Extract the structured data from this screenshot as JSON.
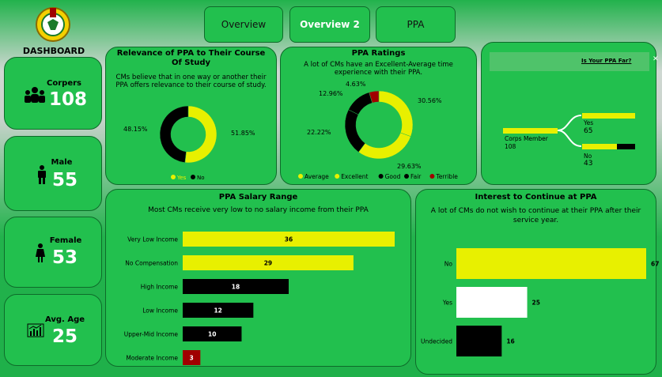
{
  "nav": {
    "overview": "Overview",
    "overview2": "Overview 2",
    "ppa": "PPA"
  },
  "dashboard_title": "DASHBOARD",
  "kpis": {
    "corpers": {
      "label": "Corpers",
      "value": "108"
    },
    "male": {
      "label": "Male",
      "value": "55"
    },
    "female": {
      "label": "Female",
      "value": "53"
    },
    "avg_age": {
      "label": "Avg. Age",
      "value": "25"
    }
  },
  "relevance": {
    "title": "Relevance of PPA to Their Course Of Study",
    "subtitle": "CMs believe that in one way or another their PPA offers relevance to their course of study.",
    "legend_yes": "Yes",
    "legend_no": "No",
    "pct_no": "48.15%",
    "pct_yes": "51.85%"
  },
  "ratings": {
    "title": "PPA Ratings",
    "subtitle": "A lot of CMs have an Excellent-Average time experience with their PPA.",
    "labels": {
      "average": "30.56%",
      "excellent": "29.63%",
      "good": "22.22%",
      "fair": "12.96%",
      "terrible": "4.63%"
    },
    "legend": [
      "Average",
      "Excellent",
      "Good",
      "Fair",
      "Terrible"
    ]
  },
  "fair_tree": {
    "header": "Is Your PPA Far?",
    "root_label": "Corps Member",
    "root_value": "108",
    "yes_label": "Yes",
    "yes_value": "65",
    "no_label": "No",
    "no_value": "43"
  },
  "salary": {
    "title": "PPA Salary Range",
    "subtitle": "Most CMs receive very low to no salary income from their PPA"
  },
  "interest": {
    "title": "Interest to Continue at PPA",
    "subtitle": "A lot of CMs do not wish to continue at their PPA after their service year."
  },
  "colors": {
    "yellow": "#e8f000",
    "black": "#000000",
    "red": "#a00000",
    "white": "#ffffff",
    "card": "#22c04e"
  },
  "chart_data": [
    {
      "type": "pie",
      "title": "Relevance of PPA to Their Course Of Study",
      "categories": [
        "Yes",
        "No"
      ],
      "values": [
        51.85,
        48.15
      ],
      "colors": [
        "#e8f000",
        "#000000"
      ]
    },
    {
      "type": "pie",
      "title": "PPA Ratings",
      "categories": [
        "Average",
        "Excellent",
        "Good",
        "Fair",
        "Terrible"
      ],
      "values": [
        30.56,
        29.63,
        22.22,
        12.96,
        4.63
      ],
      "colors": [
        "#e8f000",
        "#e8f000",
        "#000000",
        "#000000",
        "#a00000"
      ]
    },
    {
      "type": "bar",
      "title": "PPA Salary Range",
      "categories": [
        "Very Low Income",
        "No Compensation",
        "High Income",
        "Low Income",
        "Upper-Mid Income",
        "Moderate Income"
      ],
      "values": [
        36,
        29,
        18,
        12,
        10,
        3
      ],
      "colors": [
        "#e8f000",
        "#e8f000",
        "#000000",
        "#000000",
        "#000000",
        "#a00000"
      ]
    },
    {
      "type": "bar",
      "title": "Interest to Continue at PPA",
      "categories": [
        "No",
        "Yes",
        "Undecided"
      ],
      "values": [
        67,
        25,
        16
      ],
      "colors": [
        "#e8f000",
        "#ffffff",
        "#000000"
      ]
    }
  ]
}
